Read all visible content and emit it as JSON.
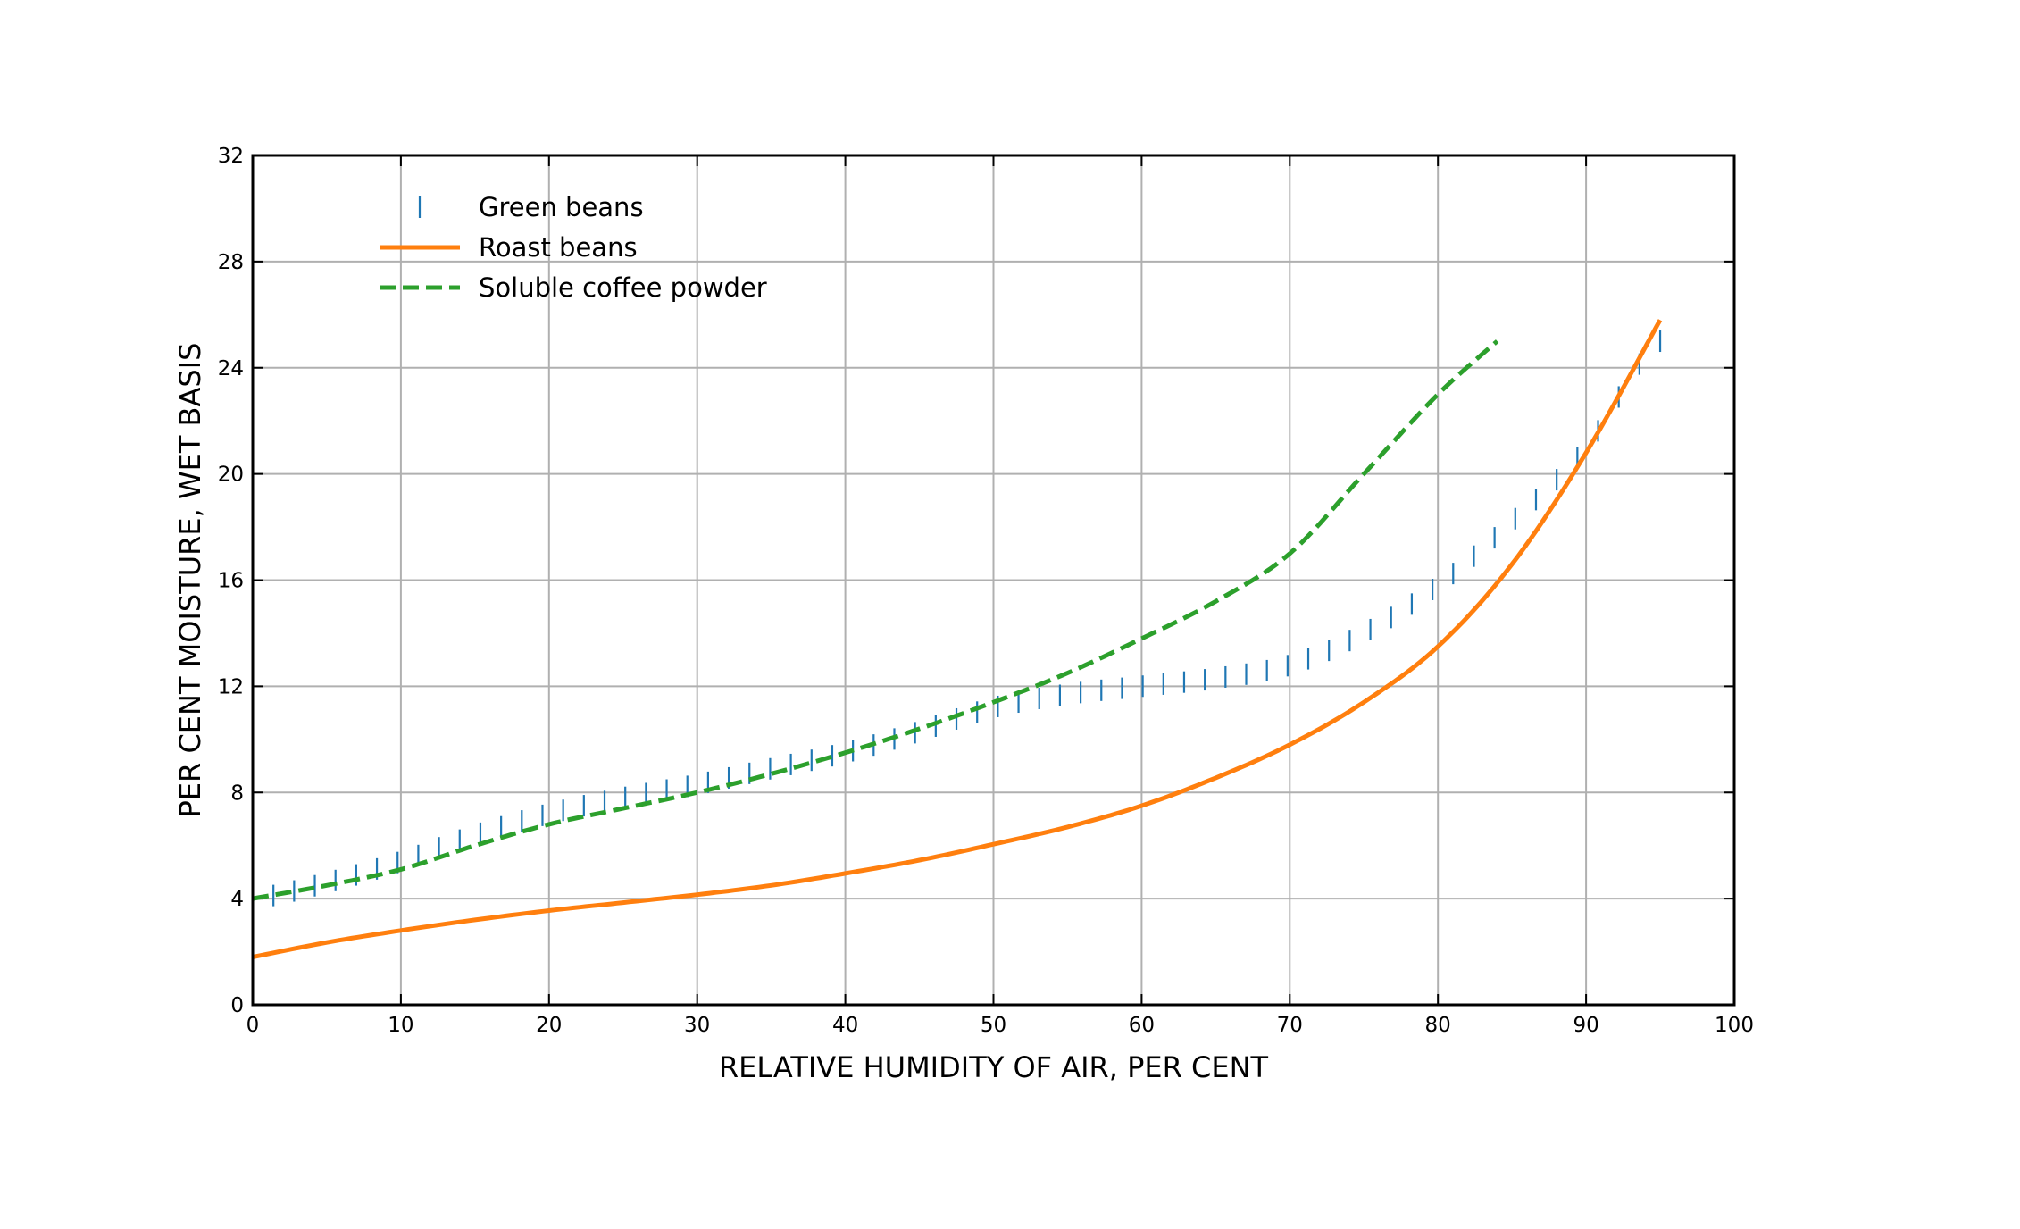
{
  "chart_data": {
    "type": "line",
    "title": "",
    "xlabel": "RELATIVE HUMIDITY OF AIR, PER CENT",
    "ylabel": "PER CENT MOISTURE, WET BASIS",
    "xlim": [
      0,
      100
    ],
    "ylim": [
      0,
      32
    ],
    "x_ticks": [
      0,
      10,
      20,
      30,
      40,
      50,
      60,
      70,
      80,
      90,
      100
    ],
    "y_ticks": [
      0,
      4,
      8,
      12,
      16,
      20,
      24,
      28,
      32
    ],
    "x_tick_labels": [
      "0",
      "10",
      "20",
      "30",
      "40",
      "50",
      "60",
      "70",
      "80",
      "90",
      "100"
    ],
    "y_tick_labels": [
      "0",
      "4",
      "8",
      "12",
      "16",
      "20",
      "24",
      "28",
      "32"
    ],
    "grid": true,
    "legend_position": "top-left",
    "series": [
      {
        "name": "Green beans",
        "style": "vertical-tick-markers",
        "color": "#1f77b4",
        "x": [
          0,
          5,
          10,
          15,
          20,
          25,
          30,
          35,
          40,
          45,
          50,
          55,
          60,
          65,
          70,
          75,
          80,
          85,
          90,
          95
        ],
        "y": [
          4.0,
          4.6,
          5.4,
          6.4,
          7.2,
          7.8,
          8.3,
          8.9,
          9.5,
          10.3,
          11.2,
          11.7,
          12.0,
          12.3,
          12.8,
          14.0,
          15.8,
          18.2,
          21.0,
          25.0
        ]
      },
      {
        "name": "Roast beans",
        "style": "solid",
        "color": "#ff7f0e",
        "x": [
          0,
          5,
          10,
          15,
          20,
          25,
          30,
          35,
          40,
          45,
          50,
          55,
          60,
          65,
          70,
          75,
          80,
          85,
          90,
          95
        ],
        "y": [
          1.8,
          2.35,
          2.8,
          3.2,
          3.55,
          3.85,
          4.15,
          4.5,
          4.95,
          5.45,
          6.05,
          6.7,
          7.5,
          8.55,
          9.8,
          11.4,
          13.5,
          16.6,
          20.8,
          25.8
        ]
      },
      {
        "name": "Soluble coffee powder",
        "style": "dashed",
        "color": "#2ca02c",
        "x": [
          0,
          5,
          10,
          15,
          20,
          25,
          30,
          35,
          40,
          45,
          50,
          55,
          60,
          65,
          70,
          75,
          80,
          84
        ],
        "y": [
          4.0,
          4.5,
          5.1,
          6.0,
          6.8,
          7.4,
          8.0,
          8.7,
          9.5,
          10.4,
          11.4,
          12.5,
          13.8,
          15.2,
          17.0,
          20.0,
          23.0,
          25.0
        ]
      }
    ]
  }
}
